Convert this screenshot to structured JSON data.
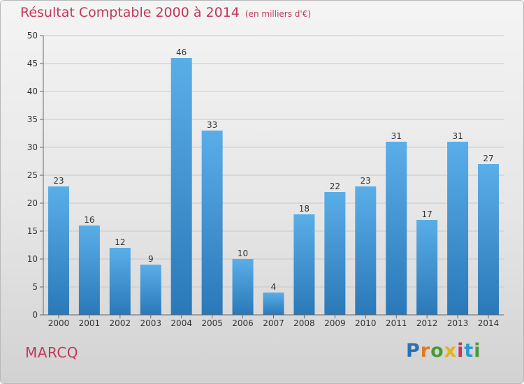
{
  "title": "Résultat Comptable 2000 à 2014",
  "unit": "(en milliers d'€)",
  "place": "MARCQ",
  "logo": {
    "letters": [
      "P",
      "r",
      "o",
      "x",
      "i",
      "t",
      "i"
    ]
  },
  "colors": {
    "accent": "#c0385a",
    "bar": "#3f93d6",
    "bar_light": "#5aaee8",
    "bar_dark": "#2a78b8"
  },
  "chart_data": {
    "type": "bar",
    "categories": [
      "2000",
      "2001",
      "2002",
      "2003",
      "2004",
      "2005",
      "2006",
      "2007",
      "2008",
      "2009",
      "2010",
      "2011",
      "2012",
      "2013",
      "2014"
    ],
    "values": [
      23,
      16,
      12,
      9,
      46,
      33,
      10,
      4,
      18,
      22,
      23,
      31,
      17,
      31,
      27
    ],
    "ylim": [
      0,
      50
    ],
    "yticks": [
      0,
      5,
      10,
      15,
      20,
      25,
      30,
      35,
      40,
      45,
      50
    ],
    "grid": true,
    "legend": "none"
  }
}
